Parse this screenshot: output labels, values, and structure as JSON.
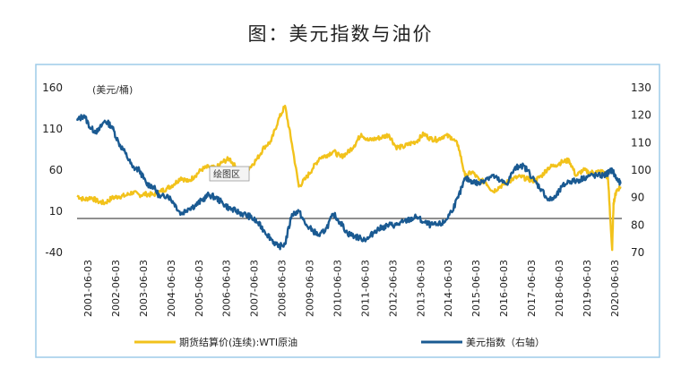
{
  "page": {
    "title": "图：美元指数与油价"
  },
  "chart_data": {
    "type": "line",
    "title": "图：美元指数与油价",
    "unit_label": "(美元/桶)",
    "zoom_hint": "绘图区",
    "y_left": {
      "ticks": [
        160,
        110,
        60,
        10,
        -40
      ],
      "range": [
        -40,
        160
      ]
    },
    "y_right": {
      "ticks": [
        130,
        120,
        110,
        100,
        90,
        80,
        70
      ],
      "range": [
        70,
        130
      ]
    },
    "x_labels": [
      "2001-06-03",
      "2002-06-03",
      "2003-06-03",
      "2004-06-03",
      "2005-06-03",
      "2006-06-03",
      "2007-06-03",
      "2008-06-03",
      "2009-06-03",
      "2010-06-03",
      "2011-06-03",
      "2012-06-03",
      "2013-06-03",
      "2014-06-03",
      "2015-06-03",
      "2016-06-03",
      "2017-06-03",
      "2018-06-03",
      "2019-06-03",
      "2020-06-03"
    ],
    "grid": false,
    "legend_position": "bottom",
    "series": [
      {
        "name": "期货结算价(连续):WTI原油",
        "axis": "left",
        "color": "#F2C21B",
        "x": [
          2001.0,
          2001.25,
          2001.5,
          2001.75,
          2002.0,
          2002.25,
          2002.5,
          2002.75,
          2003.0,
          2003.25,
          2003.5,
          2003.75,
          2004.0,
          2004.25,
          2004.5,
          2004.75,
          2005.0,
          2005.25,
          2005.5,
          2005.75,
          2006.0,
          2006.25,
          2006.5,
          2006.75,
          2007.0,
          2007.25,
          2007.5,
          2007.75,
          2008.0,
          2008.25,
          2008.5,
          2008.75,
          2009.0,
          2009.25,
          2009.5,
          2009.75,
          2010.0,
          2010.25,
          2010.5,
          2010.75,
          2011.0,
          2011.25,
          2011.5,
          2011.75,
          2012.0,
          2012.25,
          2012.5,
          2012.75,
          2013.0,
          2013.25,
          2013.5,
          2013.75,
          2014.0,
          2014.25,
          2014.5,
          2014.75,
          2015.0,
          2015.25,
          2015.5,
          2015.75,
          2016.0,
          2016.25,
          2016.5,
          2016.75,
          2017.0,
          2017.25,
          2017.5,
          2017.75,
          2018.0,
          2018.25,
          2018.5,
          2018.75,
          2019.0,
          2019.25,
          2019.5,
          2019.75,
          2020.0,
          2020.15,
          2020.3,
          2020.35,
          2020.45,
          2020.6
        ],
        "values": [
          29,
          24,
          27,
          22,
          20,
          26,
          28,
          29,
          33,
          30,
          31,
          30,
          34,
          38,
          43,
          51,
          46,
          53,
          61,
          64,
          62,
          70,
          74,
          62,
          56,
          64,
          74,
          88,
          95,
          120,
          138,
          92,
          40,
          50,
          62,
          75,
          78,
          83,
          76,
          81,
          90,
          104,
          96,
          98,
          100,
          103,
          88,
          88,
          92,
          95,
          104,
          98,
          97,
          102,
          100,
          90,
          52,
          58,
          48,
          45,
          34,
          40,
          45,
          50,
          52,
          49,
          47,
          53,
          63,
          66,
          70,
          72,
          53,
          60,
          57,
          58,
          58,
          50,
          -37,
          20,
          35,
          40
        ]
      },
      {
        "name": "美元指数（右轴）",
        "axis": "right",
        "color": "#1A5A92",
        "x": [
          2001.0,
          2001.25,
          2001.5,
          2001.75,
          2002.0,
          2002.25,
          2002.5,
          2002.75,
          2003.0,
          2003.25,
          2003.5,
          2003.75,
          2004.0,
          2004.25,
          2004.5,
          2004.75,
          2005.0,
          2005.25,
          2005.5,
          2005.75,
          2006.0,
          2006.25,
          2006.5,
          2006.75,
          2007.0,
          2007.25,
          2007.5,
          2007.75,
          2008.0,
          2008.25,
          2008.5,
          2008.75,
          2009.0,
          2009.25,
          2009.5,
          2009.75,
          2010.0,
          2010.25,
          2010.5,
          2010.75,
          2011.0,
          2011.25,
          2011.5,
          2011.75,
          2012.0,
          2012.25,
          2012.5,
          2012.75,
          2013.0,
          2013.25,
          2013.5,
          2013.75,
          2014.0,
          2014.25,
          2014.5,
          2014.75,
          2015.0,
          2015.25,
          2015.5,
          2015.75,
          2016.0,
          2016.25,
          2016.5,
          2016.75,
          2017.0,
          2017.25,
          2017.5,
          2017.75,
          2018.0,
          2018.25,
          2018.5,
          2018.75,
          2019.0,
          2019.25,
          2019.5,
          2019.75,
          2020.0,
          2020.15,
          2020.3,
          2020.45,
          2020.6
        ],
        "values": [
          118,
          120,
          115,
          114,
          118,
          116,
          110,
          106,
          101,
          100,
          95,
          94,
          90,
          91,
          88,
          84,
          86,
          87,
          89,
          91,
          90,
          88,
          86,
          85,
          84,
          83,
          81,
          78,
          75,
          72,
          73,
          84,
          85,
          80,
          78,
          76,
          79,
          84,
          81,
          77,
          76,
          75,
          75,
          78,
          79,
          80,
          80,
          81,
          82,
          83,
          81,
          80,
          80,
          81,
          85,
          90,
          97,
          96,
          95,
          97,
          98,
          96,
          95,
          100,
          102,
          100,
          96,
          93,
          89,
          90,
          94,
          96,
          96,
          97,
          98,
          98,
          98,
          99,
          100,
          97,
          95
        ]
      }
    ]
  }
}
